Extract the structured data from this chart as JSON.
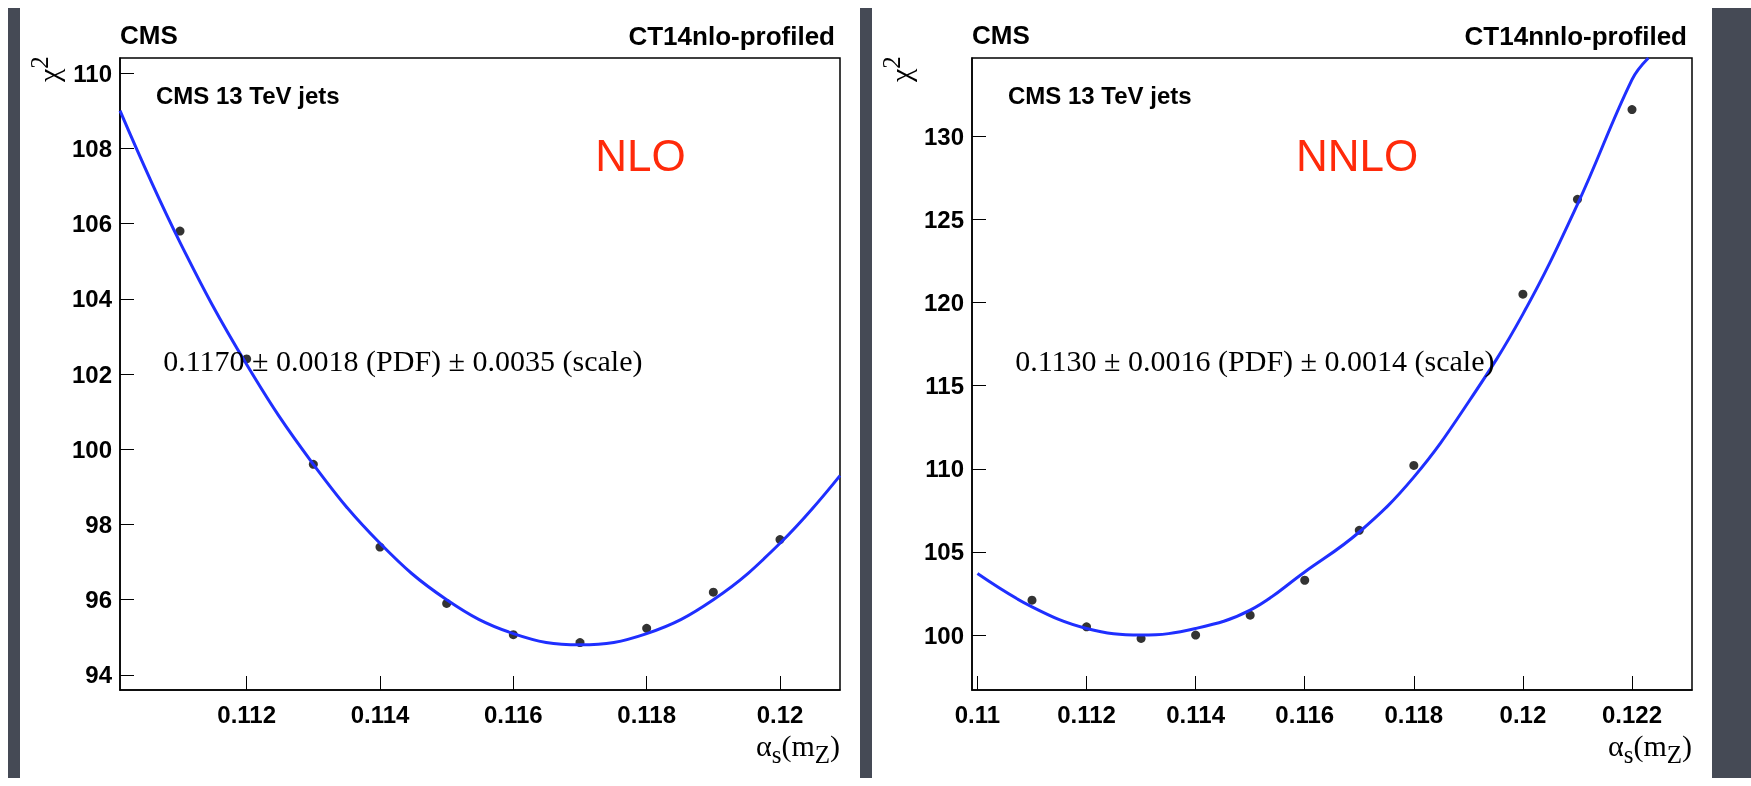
{
  "chart_data": [
    {
      "type": "scatter",
      "title": "CT14nlo-profiled",
      "xlabel": "α$_{s}$(m$_{Z}$)",
      "ylabel": "χ$^{2}$",
      "annotations": [
        "CMS",
        "CMS 13 TeV jets",
        "NLO",
        "0.1170 ± 0.0018 (PDF) ± 0.0035 (scale)"
      ],
      "xlim": [
        0.1101,
        0.1209
      ],
      "ylim": [
        93.6,
        110.4
      ],
      "xticks": [
        {
          "value": 0.112,
          "label": "0.112"
        },
        {
          "value": 0.114,
          "label": "0.114"
        },
        {
          "value": 0.116,
          "label": "0.116"
        },
        {
          "value": 0.118,
          "label": "0.118"
        },
        {
          "value": 0.12,
          "label": "0.12"
        }
      ],
      "yticks": [
        94,
        96,
        98,
        100,
        102,
        104,
        106,
        108,
        110
      ],
      "grid": false,
      "marker": "circle",
      "series": [
        {
          "color": "#000000",
          "x": [
            0.111,
            0.112,
            0.113,
            0.114,
            0.115,
            0.116,
            0.117,
            0.118,
            0.119,
            0.12
          ],
          "values": [
            105.8,
            102.4,
            99.6,
            97.4,
            95.9,
            95.07,
            94.86,
            95.24,
            96.2,
            97.6
          ]
        },
        {
          "type": "line",
          "color": "#1f2fff",
          "marker": "none",
          "x": [
            0.1101,
            0.111,
            0.112,
            0.113,
            0.114,
            0.115,
            0.116,
            0.117,
            0.118,
            0.119,
            0.12,
            0.1209
          ],
          "values": [
            109.0,
            105.5,
            102.25,
            99.6,
            97.5,
            96.0,
            95.1,
            94.8,
            95.1,
            96.0,
            97.5,
            99.3
          ]
        }
      ]
    },
    {
      "type": "scatter",
      "title": "CT14nnlo-profiled",
      "xlabel": "α$_{s}$(m$_{Z}$)",
      "ylabel": "χ$^{2}$",
      "annotations": [
        "CMS",
        "CMS 13 TeV jets",
        "NNLO",
        "0.1130 ± 0.0016 (PDF) ± 0.0014 (scale)"
      ],
      "xlim": [
        0.1099,
        0.1231
      ],
      "ylim": [
        96.7,
        134.7
      ],
      "xticks": [
        {
          "value": 0.11,
          "label": "0.11"
        },
        {
          "value": 0.112,
          "label": "0.112"
        },
        {
          "value": 0.114,
          "label": "0.114"
        },
        {
          "value": 0.116,
          "label": "0.116"
        },
        {
          "value": 0.118,
          "label": "0.118"
        },
        {
          "value": 0.12,
          "label": "0.12"
        },
        {
          "value": 0.122,
          "label": "0.122"
        }
      ],
      "yticks": [
        100,
        105,
        110,
        115,
        120,
        125,
        130
      ],
      "grid": false,
      "marker": "circle",
      "series": [
        {
          "color": "#000000",
          "x": [
            0.111,
            0.112,
            0.113,
            0.114,
            0.115,
            0.116,
            0.117,
            0.118,
            0.12,
            0.121,
            0.122
          ],
          "values": [
            102.1,
            100.5,
            99.8,
            100.0,
            101.2,
            103.3,
            106.3,
            110.2,
            120.5,
            126.2,
            131.6
          ]
        },
        {
          "type": "line",
          "color": "#1f2fff",
          "marker": "none",
          "x": [
            0.11,
            0.111,
            0.112,
            0.113,
            0.114,
            0.115,
            0.116,
            0.117,
            0.118,
            0.119,
            0.12,
            0.121,
            0.122,
            0.1223
          ],
          "values": [
            103.7,
            101.7,
            100.4,
            100.0,
            100.4,
            101.5,
            103.8,
            106.2,
            109.5,
            114.0,
            119.3,
            125.9,
            133.4,
            134.7
          ]
        }
      ]
    }
  ]
}
